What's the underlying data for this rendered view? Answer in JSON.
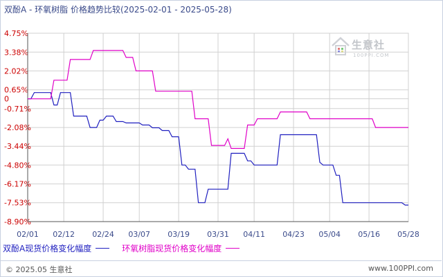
{
  "title": "双酚A - 环氧树脂 价格趋势比较(2025-02-01 - 2025-05-28)",
  "watermark": {
    "name": "生意社",
    "url": "100PPI.COM"
  },
  "footer": {
    "copyright": "© 2025.05 生意社",
    "url": "www.100PPI.com"
  },
  "colors": {
    "series1": "#1f1fbf",
    "series2": "#e000c8",
    "axis": "#555555",
    "tick": "#cc0000",
    "grid": "#d0d0d0",
    "title": "#3a4a8a"
  },
  "chart_data": {
    "type": "line",
    "title": "双酚A - 环氧树脂 价格趋势比较(2025-02-01 - 2025-05-28)",
    "xlabel": "",
    "ylabel": "",
    "y_ticks": [
      "4.75%",
      "3.38%",
      "2.02%",
      "0.65%",
      "0",
      "-0.71%",
      "-2.08%",
      "-3.44%",
      "-4.80%",
      "-6.17%",
      "-7.53%",
      "-8.90%"
    ],
    "y_tick_values": [
      4.75,
      3.38,
      2.02,
      0.65,
      0,
      -0.71,
      -2.08,
      -3.44,
      -4.8,
      -6.17,
      -7.53,
      -8.9
    ],
    "x_ticks": [
      "02/01",
      "02/12",
      "02/24",
      "03/07",
      "03/19",
      "03/31",
      "04/11",
      "04/23",
      "05/04",
      "05/16",
      "05/28"
    ],
    "x_tick_values": [
      "2025-02-01",
      "2025-02-12",
      "2025-02-24",
      "2025-03-07",
      "2025-03-19",
      "2025-03-31",
      "2025-04-11",
      "2025-04-23",
      "2025-05-04",
      "2025-05-16",
      "2025-05-28"
    ],
    "xlim": [
      "2025-02-01",
      "2025-05-28"
    ],
    "ylim": [
      -8.9,
      4.75
    ],
    "grid": true,
    "legend_position": "bottom-left",
    "series": [
      {
        "name": "双酚A现货价格变化幅度",
        "color": "#1f1fbf",
        "points": [
          [
            "2025-02-01",
            0
          ],
          [
            "2025-02-02",
            0
          ],
          [
            "2025-02-03",
            0.45
          ],
          [
            "2025-02-08",
            0.45
          ],
          [
            "2025-02-09",
            -0.45
          ],
          [
            "2025-02-10",
            -0.45
          ],
          [
            "2025-02-11",
            0.45
          ],
          [
            "2025-02-14",
            0.45
          ],
          [
            "2025-02-15",
            -1.25
          ],
          [
            "2025-02-19",
            -1.25
          ],
          [
            "2025-02-20",
            -2.08
          ],
          [
            "2025-02-22",
            -2.08
          ],
          [
            "2025-02-23",
            -1.55
          ],
          [
            "2025-02-24",
            -1.55
          ],
          [
            "2025-02-25",
            -1.25
          ],
          [
            "2025-02-27",
            -1.25
          ],
          [
            "2025-02-28",
            -1.65
          ],
          [
            "2025-03-02",
            -1.65
          ],
          [
            "2025-03-03",
            -1.75
          ],
          [
            "2025-03-07",
            -1.75
          ],
          [
            "2025-03-08",
            -1.9
          ],
          [
            "2025-03-10",
            -1.9
          ],
          [
            "2025-03-11",
            -2.1
          ],
          [
            "2025-03-13",
            -2.1
          ],
          [
            "2025-03-14",
            -2.3
          ],
          [
            "2025-03-16",
            -2.3
          ],
          [
            "2025-03-17",
            -2.75
          ],
          [
            "2025-03-19",
            -2.75
          ],
          [
            "2025-03-20",
            -4.8
          ],
          [
            "2025-03-21",
            -4.8
          ],
          [
            "2025-03-22",
            -5.1
          ],
          [
            "2025-03-24",
            -5.1
          ],
          [
            "2025-03-25",
            -7.53
          ],
          [
            "2025-03-27",
            -7.53
          ],
          [
            "2025-03-28",
            -6.55
          ],
          [
            "2025-04-03",
            -6.55
          ],
          [
            "2025-04-04",
            -3.95
          ],
          [
            "2025-04-08",
            -3.95
          ],
          [
            "2025-04-09",
            -4.5
          ],
          [
            "2025-04-10",
            -4.5
          ],
          [
            "2025-04-11",
            -4.8
          ],
          [
            "2025-04-18",
            -4.8
          ],
          [
            "2025-04-19",
            -2.6
          ],
          [
            "2025-04-30",
            -2.6
          ],
          [
            "2025-05-01",
            -4.6
          ],
          [
            "2025-05-02",
            -4.8
          ],
          [
            "2025-05-05",
            -4.8
          ],
          [
            "2025-05-06",
            -5.55
          ],
          [
            "2025-05-07",
            -5.55
          ],
          [
            "2025-05-08",
            -7.53
          ],
          [
            "2025-05-26",
            -7.53
          ],
          [
            "2025-05-27",
            -7.7
          ],
          [
            "2025-05-28",
            -7.7
          ]
        ]
      },
      {
        "name": "环氧树脂现货价格变化幅度",
        "color": "#e000c8",
        "points": [
          [
            "2025-02-01",
            0
          ],
          [
            "2025-02-07",
            0
          ],
          [
            "2025-02-08",
            0
          ],
          [
            "2025-02-09",
            1.35
          ],
          [
            "2025-02-13",
            1.35
          ],
          [
            "2025-02-14",
            2.85
          ],
          [
            "2025-02-20",
            2.85
          ],
          [
            "2025-02-21",
            3.5
          ],
          [
            "2025-03-02",
            3.5
          ],
          [
            "2025-03-03",
            3.0
          ],
          [
            "2025-03-05",
            3.0
          ],
          [
            "2025-03-06",
            2.02
          ],
          [
            "2025-03-11",
            2.02
          ],
          [
            "2025-03-12",
            0.55
          ],
          [
            "2025-03-23",
            0.55
          ],
          [
            "2025-03-24",
            -1.45
          ],
          [
            "2025-03-28",
            -1.45
          ],
          [
            "2025-03-29",
            -3.38
          ],
          [
            "2025-04-02",
            -3.38
          ],
          [
            "2025-04-03",
            -2.9
          ],
          [
            "2025-04-04",
            -3.6
          ],
          [
            "2025-04-08",
            -3.6
          ],
          [
            "2025-04-09",
            -1.9
          ],
          [
            "2025-04-11",
            -1.9
          ],
          [
            "2025-04-12",
            -1.45
          ],
          [
            "2025-04-18",
            -1.45
          ],
          [
            "2025-04-19",
            -0.95
          ],
          [
            "2025-04-27",
            -0.95
          ],
          [
            "2025-04-28",
            -1.45
          ],
          [
            "2025-05-17",
            -1.45
          ],
          [
            "2025-05-18",
            -2.08
          ],
          [
            "2025-05-28",
            -2.08
          ]
        ]
      }
    ]
  }
}
